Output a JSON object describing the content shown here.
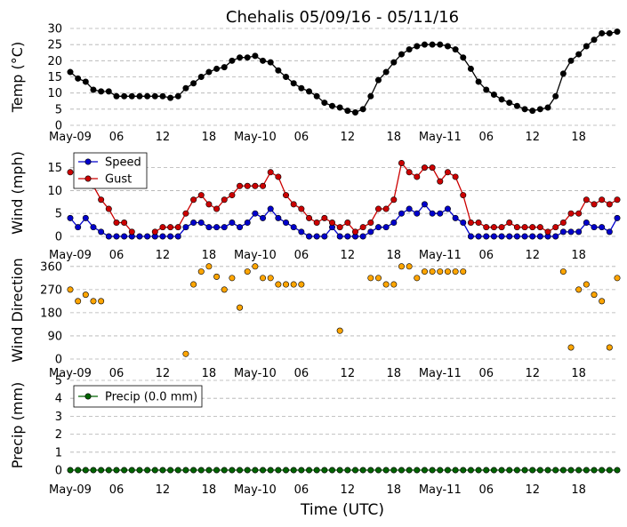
{
  "title": "Chehalis 05/09/16 - 05/11/16",
  "xlabel": "Time (UTC)",
  "x_tick_labels": [
    "May-09",
    "06",
    "12",
    "18",
    "May-10",
    "06",
    "12",
    "18",
    "May-11",
    "06",
    "12",
    "18"
  ],
  "chart_data": [
    {
      "type": "line",
      "ylabel": "Temp (°C)",
      "ylim": [
        0,
        30
      ],
      "yticks": [
        0,
        5,
        10,
        15,
        20,
        25,
        30
      ],
      "grid": true,
      "x_unit": "hours since May-09 00:00 UTC",
      "x_range": [
        0,
        71
      ],
      "series": [
        {
          "color": "#000000",
          "values": [
            16.5,
            14.5,
            13.5,
            11.0,
            10.5,
            10.5,
            9.0,
            9.0,
            9.0,
            9.0,
            9.0,
            9.0,
            9.0,
            8.5,
            9.0,
            11.5,
            13.0,
            15.0,
            16.5,
            17.5,
            18.0,
            20.0,
            21.0,
            21.0,
            21.5,
            20.0,
            19.5,
            17.0,
            15.0,
            13.0,
            11.5,
            10.5,
            9.0,
            7.0,
            6.0,
            5.5,
            4.5,
            4.0,
            5.0,
            9.0,
            14.0,
            16.5,
            19.5,
            22.0,
            23.5,
            24.5,
            25.0,
            25.0,
            25.0,
            24.5,
            23.5,
            21.0,
            17.5,
            13.5,
            11.0,
            9.5,
            8.0,
            7.0,
            6.0,
            5.0,
            4.5,
            5.0,
            5.5,
            9.0,
            16.0,
            20.0,
            22.0,
            24.5,
            26.5,
            28.5,
            28.5,
            29.0
          ]
        }
      ]
    },
    {
      "type": "line",
      "ylabel": "Wind (mph)",
      "ylim": [
        0,
        19
      ],
      "yticks": [
        0,
        5,
        10,
        15
      ],
      "grid": true,
      "legend": "top-left",
      "x_unit": "hours since May-09 00:00 UTC",
      "x_range": [
        0,
        71
      ],
      "series": [
        {
          "name": "Speed",
          "color": "#0000cc",
          "values": [
            4,
            2,
            4,
            2,
            1,
            0,
            0,
            0,
            0,
            0,
            0,
            0,
            0,
            0,
            0,
            2,
            3,
            3,
            2,
            2,
            2,
            3,
            2,
            3,
            5,
            4,
            6,
            4,
            3,
            2,
            1,
            0,
            0,
            0,
            2,
            0,
            0,
            0,
            0,
            1,
            2,
            2,
            3,
            5,
            6,
            5,
            7,
            5,
            5,
            6,
            4,
            3,
            0,
            0,
            0,
            0,
            0,
            0,
            0,
            0,
            0,
            0,
            0,
            0,
            1,
            1,
            1,
            3,
            2,
            2,
            1,
            4
          ]
        },
        {
          "name": "Gust",
          "color": "#cc0000",
          "values": [
            14,
            null,
            null,
            11,
            8,
            6,
            3,
            3,
            1,
            null,
            null,
            1,
            2,
            2,
            2,
            5,
            8,
            9,
            7,
            6,
            8,
            9,
            11,
            11,
            11,
            11,
            14,
            13,
            9,
            7,
            6,
            4,
            3,
            4,
            3,
            2,
            3,
            1,
            2,
            3,
            6,
            6,
            8,
            16,
            14,
            13,
            15,
            15,
            12,
            14,
            13,
            9,
            3,
            3,
            2,
            2,
            2,
            3,
            2,
            2,
            2,
            2,
            1,
            2,
            3,
            5,
            5,
            8,
            7,
            8,
            7,
            8
          ]
        }
      ]
    },
    {
      "type": "scatter",
      "ylabel": "Wind Direction",
      "ylim": [
        0,
        380
      ],
      "yticks": [
        0,
        90,
        180,
        270,
        360
      ],
      "grid": true,
      "x_unit": "hours since May-09 00:00 UTC",
      "x_range": [
        0,
        71
      ],
      "series": [
        {
          "color": "#ffa500",
          "values": [
            270,
            225,
            250,
            225,
            225,
            null,
            null,
            null,
            null,
            null,
            null,
            null,
            null,
            null,
            null,
            20,
            290,
            340,
            360,
            320,
            270,
            315,
            200,
            340,
            360,
            315,
            315,
            290,
            290,
            290,
            290,
            null,
            null,
            null,
            null,
            110,
            null,
            null,
            null,
            315,
            315,
            290,
            290,
            360,
            360,
            315,
            340,
            340,
            340,
            340,
            340,
            340,
            null,
            null,
            null,
            null,
            null,
            null,
            null,
            null,
            null,
            null,
            null,
            null,
            340,
            45,
            270,
            290,
            250,
            225,
            45,
            315
          ]
        }
      ]
    },
    {
      "type": "line",
      "ylabel": "Precip (mm)",
      "ylim": [
        0,
        5
      ],
      "yticks": [
        0,
        1,
        2,
        3,
        4,
        5
      ],
      "grid": true,
      "legend": "top-left",
      "x_unit": "hours since May-09 00:00 UTC",
      "x_range": [
        0,
        71
      ],
      "series": [
        {
          "name": "Precip (0.0 mm)",
          "color": "#006400",
          "values": [
            0,
            0,
            0,
            0,
            0,
            0,
            0,
            0,
            0,
            0,
            0,
            0,
            0,
            0,
            0,
            0,
            0,
            0,
            0,
            0,
            0,
            0,
            0,
            0,
            0,
            0,
            0,
            0,
            0,
            0,
            0,
            0,
            0,
            0,
            0,
            0,
            0,
            0,
            0,
            0,
            0,
            0,
            0,
            0,
            0,
            0,
            0,
            0,
            0,
            0,
            0,
            0,
            0,
            0,
            0,
            0,
            0,
            0,
            0,
            0,
            0,
            0,
            0,
            0,
            0,
            0,
            0,
            0,
            0,
            0,
            0,
            0
          ]
        }
      ]
    }
  ]
}
